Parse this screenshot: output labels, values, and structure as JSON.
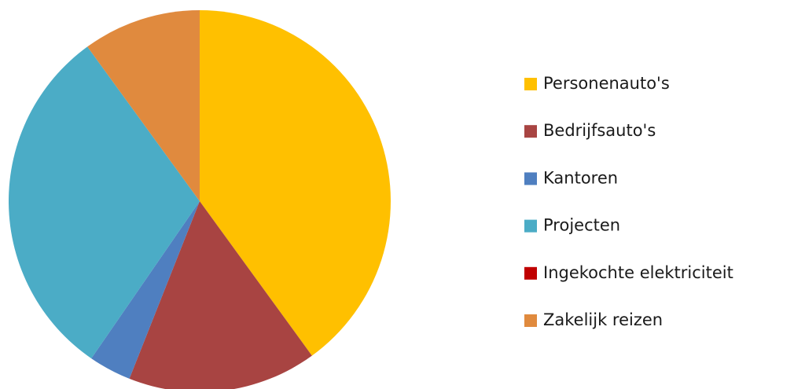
{
  "chart_data": {
    "type": "pie",
    "categories": [
      "Personenauto's",
      "Bedrijfsauto's",
      "Kantoren",
      "Projecten",
      "Ingekochte elektriciteit",
      "Zakelijk reizen"
    ],
    "values": [
      40,
      16,
      3.6,
      30.4,
      0,
      10
    ],
    "colors": [
      "#ffc000",
      "#a84442",
      "#4f7fc0",
      "#4bacc6",
      "#c00000",
      "#e08a3e"
    ],
    "legend": "right"
  }
}
